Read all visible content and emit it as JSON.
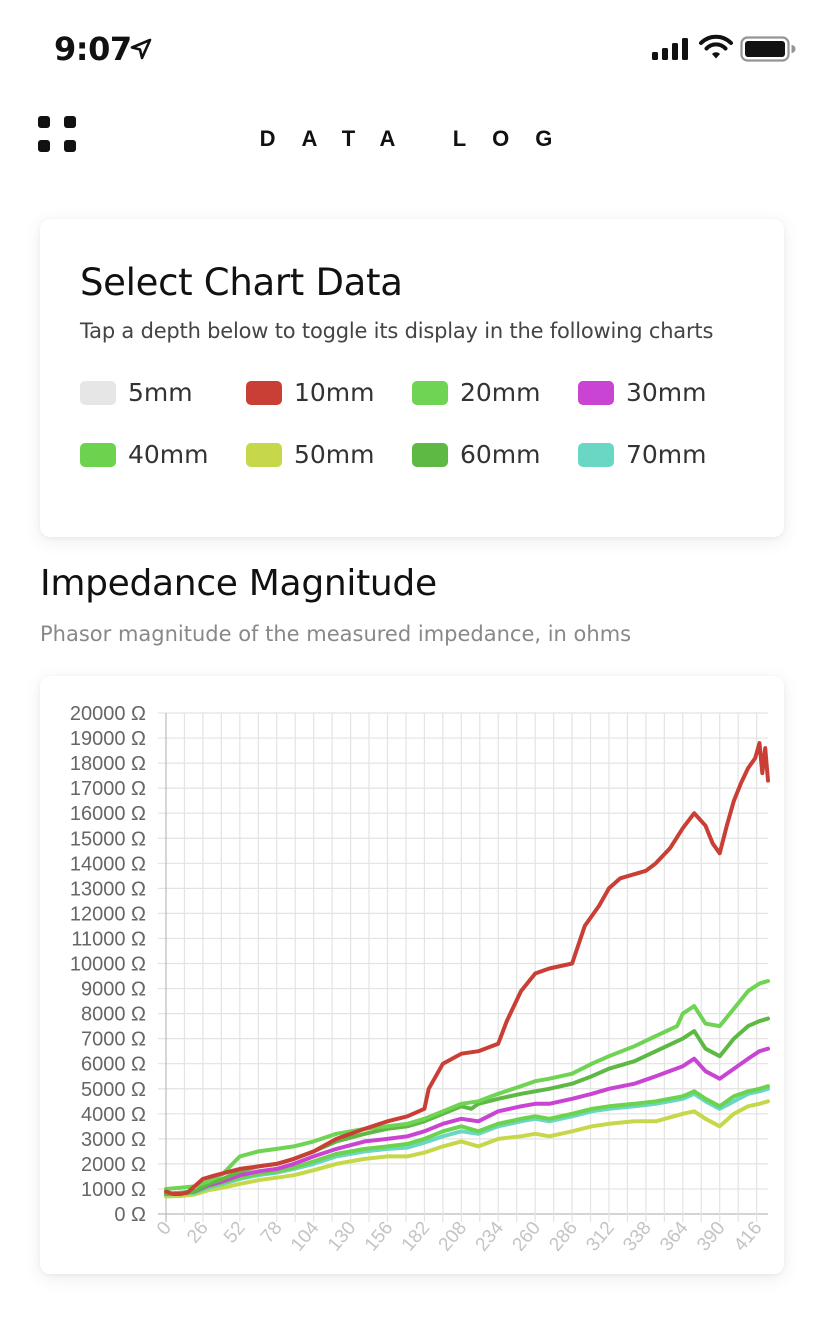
{
  "status_bar": {
    "time": "9:07"
  },
  "header": {
    "title": "DATA LOG"
  },
  "select_card": {
    "title": "Select Chart Data",
    "subtitle": "Tap a depth below to toggle its display in the following charts",
    "items": [
      {
        "label": "5mm",
        "color": "#e6e6e6"
      },
      {
        "label": "10mm",
        "color": "#c93f36"
      },
      {
        "label": "20mm",
        "color": "#6fd353"
      },
      {
        "label": "30mm",
        "color": "#c944d2"
      },
      {
        "label": "40mm",
        "color": "#6bd34e"
      },
      {
        "label": "50mm",
        "color": "#c6d84a"
      },
      {
        "label": "60mm",
        "color": "#5db844"
      },
      {
        "label": "70mm",
        "color": "#6ad6c4"
      }
    ]
  },
  "impedance_section": {
    "title": "Impedance Magnitude",
    "subtitle": "Phasor magnitude of the measured impedance, in ohms"
  },
  "chart_data": {
    "type": "line",
    "y_unit": "Ω",
    "ylim": [
      0,
      20000
    ],
    "y_ticks": [
      "0 Ω",
      "1000 Ω",
      "2000 Ω",
      "3000 Ω",
      "4000 Ω",
      "5000 Ω",
      "6000 Ω",
      "7000 Ω",
      "8000 Ω",
      "9000 Ω",
      "10000 Ω",
      "11000 Ω",
      "12000 Ω",
      "13000 Ω",
      "14000 Ω",
      "15000 Ω",
      "16000 Ω",
      "17000 Ω",
      "18000 Ω",
      "19000 Ω",
      "20000 Ω"
    ],
    "xlim": [
      0,
      424
    ],
    "x_ticks": [
      "0",
      "26",
      "52",
      "78",
      "104",
      "130",
      "156",
      "182",
      "208",
      "234",
      "260",
      "286",
      "312",
      "338",
      "364",
      "390",
      "416"
    ],
    "grid": true,
    "series": [
      {
        "name": "10mm",
        "color": "#c93f36",
        "x": [
          0,
          5,
          10,
          15,
          26,
          35,
          52,
          65,
          78,
          90,
          104,
          120,
          140,
          156,
          170,
          182,
          185,
          195,
          208,
          220,
          234,
          240,
          250,
          260,
          270,
          286,
          295,
          305,
          312,
          320,
          338,
          345,
          355,
          364,
          372,
          380,
          385,
          390,
          395,
          400,
          405,
          410,
          415,
          418,
          420,
          422,
          424
        ],
        "y": [
          900,
          800,
          800,
          850,
          1400,
          1550,
          1800,
          1900,
          2000,
          2200,
          2500,
          3000,
          3400,
          3700,
          3900,
          4200,
          5000,
          6000,
          6400,
          6500,
          6800,
          7700,
          8900,
          9600,
          9800,
          10000,
          11500,
          12300,
          13000,
          13400,
          13700,
          14000,
          14600,
          15400,
          16000,
          15500,
          14800,
          14400,
          15500,
          16500,
          17200,
          17800,
          18200,
          18800,
          17600,
          18600,
          17300
        ]
      },
      {
        "name": "20mm",
        "color": "#6fd353",
        "x": [
          0,
          10,
          20,
          30,
          40,
          52,
          65,
          78,
          90,
          104,
          120,
          140,
          156,
          170,
          182,
          195,
          208,
          220,
          234,
          250,
          260,
          270,
          286,
          300,
          312,
          330,
          345,
          360,
          364,
          372,
          380,
          390,
          400,
          410,
          418,
          424
        ],
        "y": [
          1000,
          1050,
          1100,
          1300,
          1600,
          2300,
          2500,
          2600,
          2700,
          2900,
          3200,
          3400,
          3500,
          3600,
          3800,
          4100,
          4400,
          4500,
          4800,
          5100,
          5300,
          5400,
          5600,
          6000,
          6300,
          6700,
          7100,
          7500,
          8000,
          8300,
          7600,
          7500,
          8200,
          8900,
          9200,
          9300
        ]
      },
      {
        "name": "60mm",
        "color": "#5db844",
        "x": [
          0,
          10,
          20,
          30,
          40,
          52,
          65,
          78,
          90,
          104,
          120,
          140,
          156,
          170,
          182,
          195,
          208,
          215,
          220,
          234,
          250,
          260,
          270,
          286,
          300,
          312,
          330,
          345,
          364,
          372,
          380,
          390,
          400,
          410,
          418,
          424
        ],
        "y": [
          800,
          850,
          900,
          1200,
          1400,
          1700,
          1900,
          2000,
          2200,
          2500,
          2900,
          3200,
          3400,
          3500,
          3700,
          4000,
          4300,
          4200,
          4400,
          4600,
          4800,
          4900,
          5000,
          5200,
          5500,
          5800,
          6100,
          6500,
          7000,
          7300,
          6600,
          6300,
          7000,
          7500,
          7700,
          7800
        ]
      },
      {
        "name": "30mm",
        "color": "#c944d2",
        "x": [
          0,
          10,
          20,
          30,
          40,
          52,
          65,
          78,
          90,
          104,
          120,
          140,
          156,
          170,
          182,
          195,
          208,
          220,
          234,
          250,
          260,
          270,
          286,
          300,
          312,
          330,
          345,
          364,
          372,
          380,
          390,
          400,
          410,
          418,
          424
        ],
        "y": [
          800,
          850,
          900,
          1150,
          1300,
          1550,
          1700,
          1800,
          2000,
          2300,
          2600,
          2900,
          3000,
          3100,
          3300,
          3600,
          3800,
          3700,
          4100,
          4300,
          4400,
          4400,
          4600,
          4800,
          5000,
          5200,
          5500,
          5900,
          6200,
          5700,
          5400,
          5800,
          6200,
          6500,
          6600
        ]
      },
      {
        "name": "40mm",
        "color": "#6bd34e",
        "x": [
          0,
          10,
          20,
          30,
          40,
          52,
          65,
          78,
          90,
          104,
          120,
          140,
          156,
          170,
          182,
          195,
          208,
          220,
          234,
          250,
          260,
          270,
          286,
          300,
          312,
          330,
          345,
          364,
          372,
          380,
          390,
          400,
          410,
          418,
          424
        ],
        "y": [
          800,
          820,
          880,
          1100,
          1250,
          1450,
          1600,
          1700,
          1850,
          2100,
          2400,
          2600,
          2700,
          2800,
          3000,
          3300,
          3500,
          3300,
          3600,
          3800,
          3900,
          3800,
          4000,
          4200,
          4300,
          4400,
          4500,
          4700,
          4900,
          4600,
          4300,
          4700,
          4900,
          5000,
          5100
        ]
      },
      {
        "name": "70mm",
        "color": "#6ad6c4",
        "x": [
          0,
          10,
          20,
          30,
          40,
          52,
          65,
          78,
          90,
          104,
          120,
          140,
          156,
          170,
          182,
          195,
          208,
          220,
          234,
          250,
          260,
          270,
          286,
          300,
          312,
          330,
          345,
          364,
          372,
          380,
          390,
          400,
          410,
          418,
          424
        ],
        "y": [
          780,
          800,
          850,
          1050,
          1200,
          1400,
          1550,
          1650,
          1800,
          2000,
          2300,
          2500,
          2600,
          2650,
          2850,
          3100,
          3300,
          3200,
          3500,
          3700,
          3800,
          3700,
          3900,
          4100,
          4200,
          4300,
          4400,
          4600,
          4800,
          4500,
          4200,
          4500,
          4800,
          4900,
          5000
        ]
      },
      {
        "name": "50mm",
        "color": "#c6d84a",
        "x": [
          0,
          10,
          20,
          30,
          40,
          52,
          65,
          78,
          90,
          104,
          120,
          140,
          156,
          170,
          182,
          195,
          208,
          220,
          234,
          250,
          260,
          270,
          286,
          300,
          312,
          330,
          345,
          364,
          372,
          380,
          390,
          400,
          410,
          418,
          424
        ],
        "y": [
          700,
          720,
          780,
          950,
          1050,
          1200,
          1350,
          1450,
          1550,
          1750,
          2000,
          2200,
          2300,
          2300,
          2450,
          2700,
          2900,
          2700,
          3000,
          3100,
          3200,
          3100,
          3300,
          3500,
          3600,
          3700,
          3700,
          4000,
          4100,
          3800,
          3500,
          4000,
          4300,
          4400,
          4500
        ]
      }
    ]
  }
}
